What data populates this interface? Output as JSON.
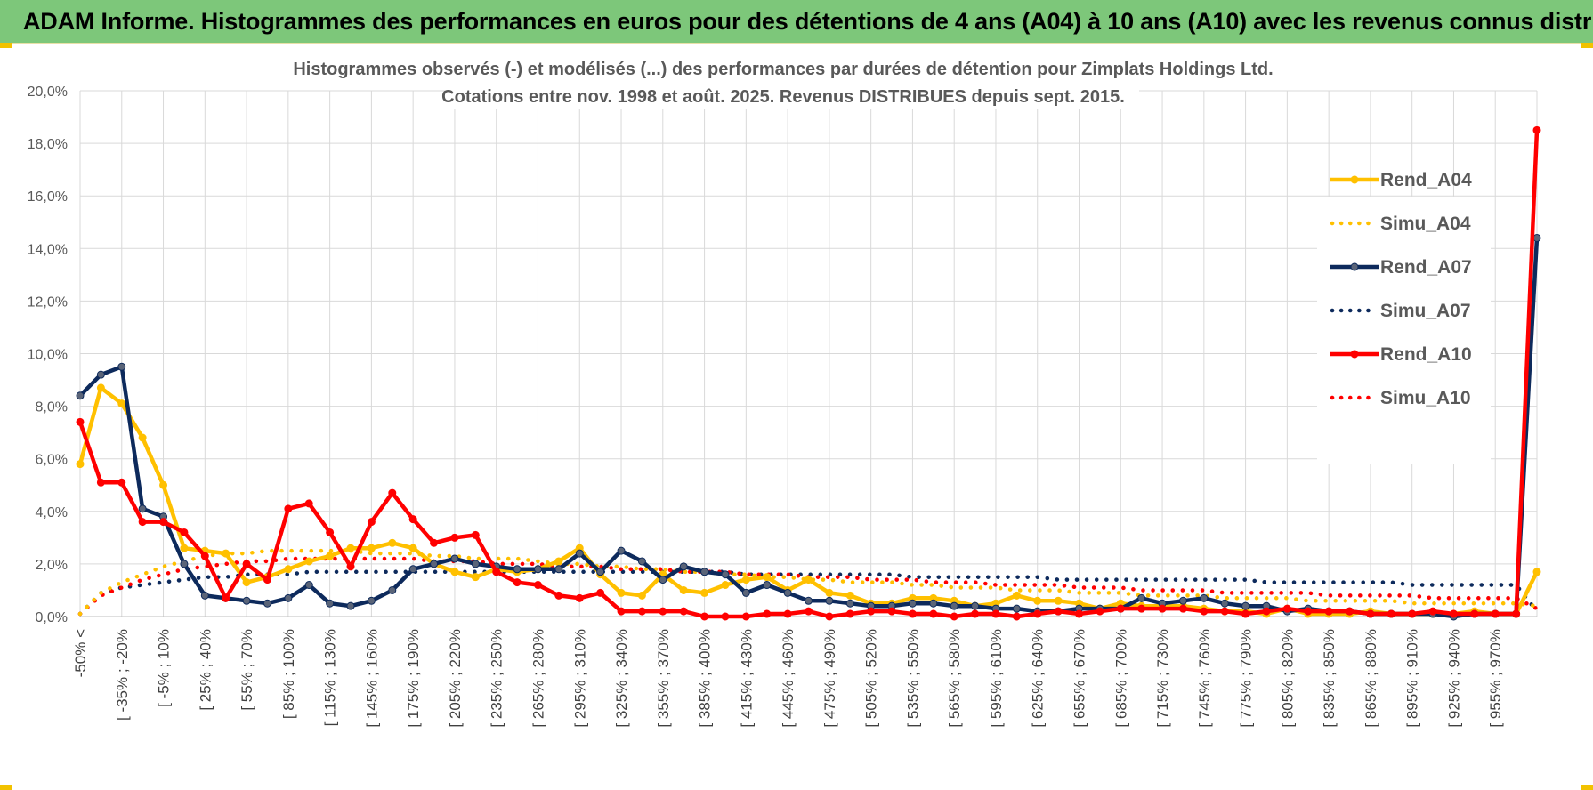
{
  "banner": {
    "title": "ADAM Informe. Histogrammes des performances en euros pour des détentions de 4 ans (A04) à 10 ans (A10) avec les revenus connus distribués"
  },
  "colors": {
    "banner_bg": "#7dc77a",
    "Rend_A04": "#ffc000",
    "Simu_A04": "#ffc000",
    "Rend_A07": "#0d2a5c",
    "Simu_A07": "#0d2a5c",
    "Rend_A10": "#ff0000",
    "Simu_A10": "#ff0000",
    "grid": "#d9d9d9"
  },
  "chart_data": {
    "type": "line",
    "title": "Histogrammes observés (-) et modélisés (...) des performances par durées de détention pour Zimplats Holdings Ltd.",
    "subtitle": "Cotations entre nov. 1998 et août. 2025. Revenus DISTRIBUES depuis sept. 2015.",
    "xlabel": "",
    "ylabel": "",
    "ylim": [
      0,
      20
    ],
    "yticks": [
      "0,0%",
      "2,0%",
      "4,0%",
      "6,0%",
      "8,0%",
      "10,0%",
      "12,0%",
      "14,0%",
      "16,0%",
      "18,0%",
      "20,0%"
    ],
    "grid": true,
    "legend_position": "right",
    "x_tick_labels": [
      "-50% <",
      "[ -35% ; -20%",
      "[ -5% ; 10%",
      "[ 25% ; 40%",
      "[ 55% ; 70%",
      "[ 85% ; 100%",
      "[ 115% ; 130%",
      "[ 145% ; 160%",
      "[ 175% ; 190%",
      "[ 205% ; 220%",
      "[ 235% ; 250%",
      "[ 265% ; 280%",
      "[ 295% ; 310%",
      "[ 325% ; 340%",
      "[ 355% ; 370%",
      "[ 385% ; 400%",
      "[ 415% ; 430%",
      "[ 445% ; 460%",
      "[ 475% ; 490%",
      "[ 505% ; 520%",
      "[ 535% ; 550%",
      "[ 565% ; 580%",
      "[ 595% ; 610%",
      "[ 625% ; 640%",
      "[ 655% ; 670%",
      "[ 685% ; 700%",
      "[ 715% ; 730%",
      "[ 745% ; 760%",
      "[ 775% ; 790%",
      "[ 805% ; 820%",
      "[ 835% ; 850%",
      "[ 865% ; 880%",
      "[ 895% ; 910%",
      "[ 925% ; 940%",
      "[ 955% ; 970%"
    ],
    "n_categories": 71,
    "series": [
      {
        "name": "Rend_A04",
        "style": "solid",
        "values": [
          5.8,
          8.7,
          8.1,
          6.8,
          5.0,
          2.6,
          2.5,
          2.4,
          1.3,
          1.5,
          1.8,
          2.1,
          2.3,
          2.6,
          2.6,
          2.8,
          2.6,
          2.0,
          1.7,
          1.5,
          1.8,
          1.7,
          1.8,
          2.1,
          2.6,
          1.6,
          0.9,
          0.8,
          1.6,
          1.0,
          0.9,
          1.2,
          1.4,
          1.5,
          1.0,
          1.4,
          0.9,
          0.8,
          0.5,
          0.5,
          0.7,
          0.7,
          0.6,
          0.4,
          0.5,
          0.8,
          0.6,
          0.6,
          0.5,
          0.3,
          0.5,
          0.4,
          0.4,
          0.4,
          0.3,
          0.2,
          0.2,
          0.1,
          0.3,
          0.1,
          0.1,
          0.1,
          0.2,
          0.1,
          0.1,
          0.1,
          0.1,
          0.2,
          0.1,
          0.1,
          1.7
        ]
      },
      {
        "name": "Simu_A04",
        "style": "dotted",
        "values": [
          0.1,
          0.9,
          1.3,
          1.6,
          1.9,
          2.1,
          2.3,
          2.4,
          2.4,
          2.5,
          2.5,
          2.5,
          2.5,
          2.5,
          2.4,
          2.4,
          2.4,
          2.3,
          2.3,
          2.2,
          2.2,
          2.2,
          2.1,
          2.0,
          2.0,
          1.9,
          1.9,
          1.8,
          1.8,
          1.7,
          1.7,
          1.6,
          1.6,
          1.5,
          1.5,
          1.4,
          1.4,
          1.3,
          1.3,
          1.3,
          1.2,
          1.2,
          1.1,
          1.1,
          1.1,
          1.0,
          1.0,
          1.0,
          0.9,
          0.9,
          0.9,
          0.8,
          0.8,
          0.8,
          0.8,
          0.7,
          0.7,
          0.7,
          0.7,
          0.6,
          0.6,
          0.6,
          0.6,
          0.6,
          0.5,
          0.5,
          0.5,
          0.5,
          0.5,
          0.5,
          0.4
        ]
      },
      {
        "name": "Rend_A07",
        "style": "solid",
        "values": [
          8.4,
          9.2,
          9.5,
          4.1,
          3.8,
          2.0,
          0.8,
          0.7,
          0.6,
          0.5,
          0.7,
          1.2,
          0.5,
          0.4,
          0.6,
          1.0,
          1.8,
          2.0,
          2.2,
          2.0,
          1.9,
          1.8,
          1.8,
          1.8,
          2.4,
          1.7,
          2.5,
          2.1,
          1.4,
          1.9,
          1.7,
          1.6,
          0.9,
          1.2,
          0.9,
          0.6,
          0.6,
          0.5,
          0.4,
          0.4,
          0.5,
          0.5,
          0.4,
          0.4,
          0.3,
          0.3,
          0.2,
          0.2,
          0.3,
          0.3,
          0.3,
          0.7,
          0.5,
          0.6,
          0.7,
          0.5,
          0.4,
          0.4,
          0.2,
          0.3,
          0.2,
          0.2,
          0.1,
          0.1,
          0.1,
          0.1,
          0.0,
          0.1,
          0.1,
          0.1,
          14.4
        ]
      },
      {
        "name": "Simu_A07",
        "style": "dotted",
        "values": [
          0.1,
          0.9,
          1.1,
          1.2,
          1.3,
          1.4,
          1.5,
          1.5,
          1.6,
          1.6,
          1.6,
          1.7,
          1.7,
          1.7,
          1.7,
          1.7,
          1.7,
          1.7,
          1.7,
          1.7,
          1.7,
          1.7,
          1.7,
          1.7,
          1.7,
          1.7,
          1.7,
          1.7,
          1.7,
          1.7,
          1.7,
          1.7,
          1.6,
          1.6,
          1.6,
          1.6,
          1.6,
          1.6,
          1.6,
          1.6,
          1.5,
          1.5,
          1.5,
          1.5,
          1.5,
          1.5,
          1.5,
          1.4,
          1.4,
          1.4,
          1.4,
          1.4,
          1.4,
          1.4,
          1.4,
          1.4,
          1.4,
          1.3,
          1.3,
          1.3,
          1.3,
          1.3,
          1.3,
          1.3,
          1.2,
          1.2,
          1.2,
          1.2,
          1.2,
          1.2,
          0.2
        ]
      },
      {
        "name": "Rend_A10",
        "style": "solid",
        "values": [
          7.4,
          5.1,
          5.1,
          3.6,
          3.6,
          3.2,
          2.3,
          0.7,
          2.0,
          1.4,
          4.1,
          4.3,
          3.2,
          1.9,
          3.6,
          4.7,
          3.7,
          2.8,
          3.0,
          3.1,
          1.7,
          1.3,
          1.2,
          0.8,
          0.7,
          0.9,
          0.2,
          0.2,
          0.2,
          0.2,
          0.0,
          0.0,
          0.0,
          0.1,
          0.1,
          0.2,
          0.0,
          0.1,
          0.2,
          0.2,
          0.1,
          0.1,
          0.0,
          0.1,
          0.1,
          0.0,
          0.1,
          0.2,
          0.1,
          0.2,
          0.3,
          0.3,
          0.3,
          0.3,
          0.2,
          0.2,
          0.1,
          0.2,
          0.3,
          0.2,
          0.2,
          0.2,
          0.1,
          0.1,
          0.1,
          0.2,
          0.1,
          0.1,
          0.1,
          0.1,
          18.5
        ]
      },
      {
        "name": "Simu_A10",
        "style": "dotted",
        "values": [
          0.1,
          0.8,
          1.1,
          1.4,
          1.6,
          1.8,
          1.9,
          2.0,
          2.1,
          2.1,
          2.2,
          2.2,
          2.2,
          2.2,
          2.2,
          2.2,
          2.2,
          2.1,
          2.1,
          2.1,
          2.0,
          2.0,
          2.0,
          1.9,
          1.9,
          1.9,
          1.8,
          1.8,
          1.8,
          1.7,
          1.7,
          1.7,
          1.6,
          1.6,
          1.6,
          1.5,
          1.5,
          1.5,
          1.4,
          1.4,
          1.4,
          1.3,
          1.3,
          1.3,
          1.2,
          1.2,
          1.2,
          1.2,
          1.1,
          1.1,
          1.1,
          1.0,
          1.0,
          1.0,
          1.0,
          0.9,
          0.9,
          0.9,
          0.9,
          0.9,
          0.8,
          0.8,
          0.8,
          0.8,
          0.8,
          0.7,
          0.7,
          0.7,
          0.7,
          0.7,
          0.3
        ]
      }
    ]
  }
}
